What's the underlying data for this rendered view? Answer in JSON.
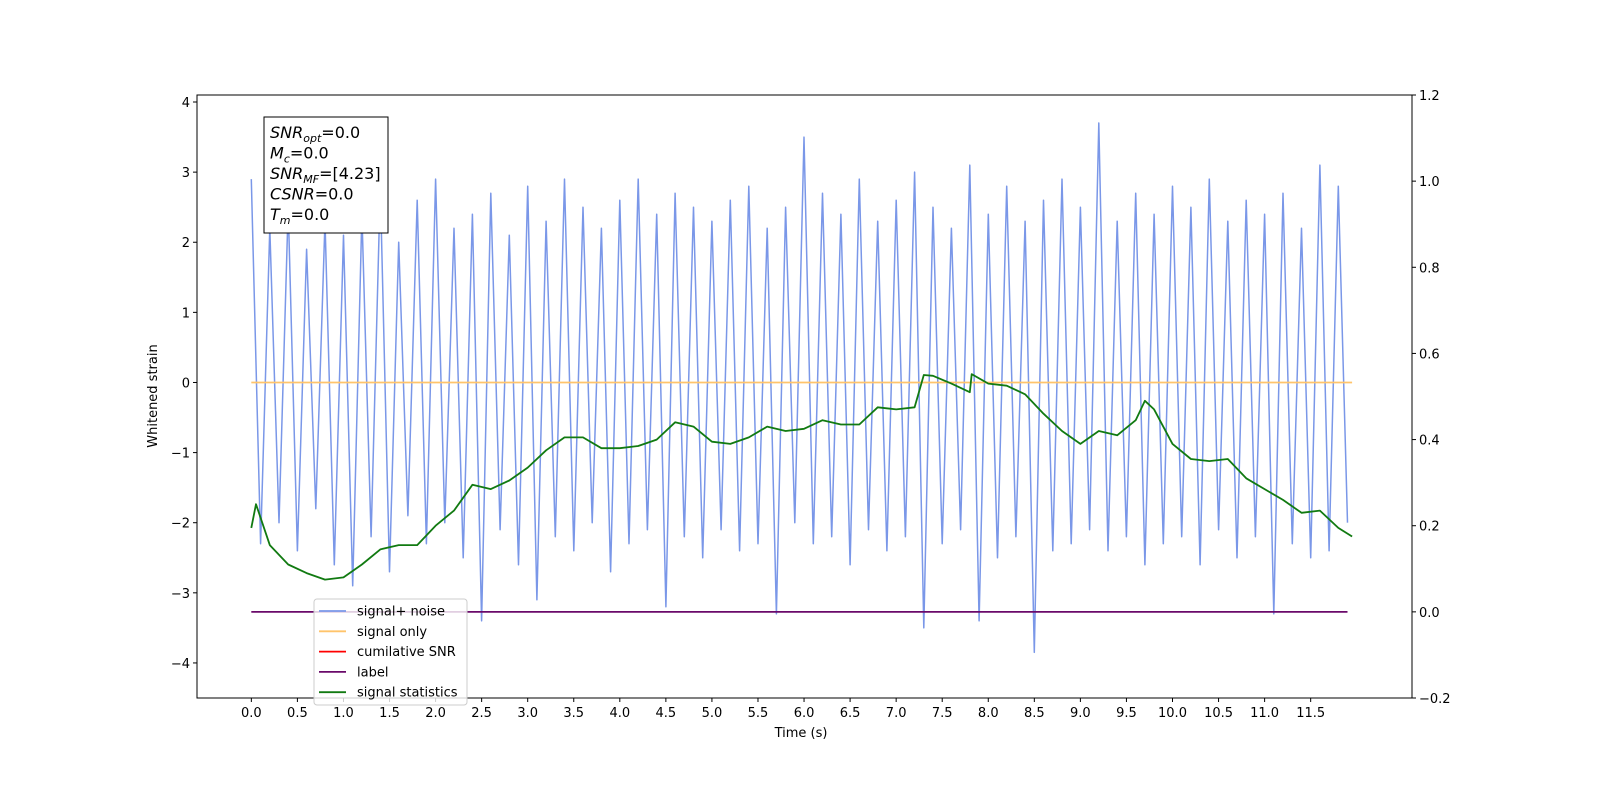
{
  "chart_data": {
    "type": "line",
    "xlabel": "Time (s)",
    "ylabel": "Whitened strain",
    "xlim": [
      -0.59,
      12.6
    ],
    "ylim": [
      -4.5,
      4.1
    ],
    "y2lim": [
      -0.2,
      1.2
    ],
    "xticks": [
      {
        "value": 0,
        "label": "0.0"
      },
      0.5,
      {
        "value": 1,
        "label": "1.0"
      },
      1.5,
      {
        "value": 2,
        "label": "2.0"
      },
      2.5,
      {
        "value": 3,
        "label": "3.0"
      },
      3.5,
      {
        "value": 4,
        "label": "4.0"
      },
      4.5,
      {
        "value": 5,
        "label": "5.0"
      },
      5.5,
      {
        "value": 6,
        "label": "6.0"
      },
      6.5,
      {
        "value": 7,
        "label": "7.0"
      },
      7.5,
      {
        "value": 8,
        "label": "8.0"
      },
      8.5,
      {
        "value": 9,
        "label": "9.0"
      },
      9.5,
      {
        "value": 10,
        "label": "10.0"
      },
      10.5,
      {
        "value": 11,
        "label": "11.0"
      },
      11.5
    ],
    "yticks": [
      {
        "value": -4,
        "label": "−4"
      },
      {
        "value": -3,
        "label": "−3"
      },
      {
        "value": -2,
        "label": "−2"
      },
      {
        "value": -1,
        "label": "−1"
      },
      0,
      1,
      2,
      3,
      4
    ],
    "y2ticks": [
      {
        "value": -0.2,
        "label": "−0.2"
      },
      {
        "value": 0,
        "label": "0.0"
      },
      0.2,
      0.4,
      0.6,
      0.8,
      {
        "value": 1,
        "label": "1.0"
      },
      1.2
    ],
    "legend": "lower left",
    "textbox": [
      {
        "symbol": "SNR",
        "sub": "opt",
        "value": "=0.0"
      },
      {
        "symbol": "M",
        "sub": "c",
        "value": "=0.0"
      },
      {
        "symbol": "SNR",
        "sub": "MF",
        "value": "=[4.23]"
      },
      {
        "symbol": "CSNR",
        "value": "=0.0"
      },
      {
        "symbol": "T",
        "sub": "m",
        "value": "=0.0"
      }
    ],
    "series": [
      {
        "name": "signal+ noise",
        "color": "#7a97e8",
        "axis": "y",
        "x": [
          0,
          0.1,
          0.2,
          0.3,
          0.4,
          0.5,
          0.6,
          0.7,
          0.8,
          0.9,
          1,
          1.1,
          1.2,
          1.3,
          1.4,
          1.5,
          1.6,
          1.7,
          1.8,
          1.9,
          2,
          2.1,
          2.2,
          2.3,
          2.4,
          2.5,
          2.6,
          2.7,
          2.8,
          2.9,
          3,
          3.1,
          3.2,
          3.3,
          3.4,
          3.5,
          3.6,
          3.7,
          3.8,
          3.9,
          4,
          4.1,
          4.2,
          4.3,
          4.4,
          4.5,
          4.6,
          4.7,
          4.8,
          4.9,
          5,
          5.1,
          5.2,
          5.3,
          5.4,
          5.5,
          5.6,
          5.7,
          5.8,
          5.9,
          6,
          6.1,
          6.2,
          6.3,
          6.4,
          6.5,
          6.6,
          6.7,
          6.8,
          6.9,
          7,
          7.1,
          7.2,
          7.3,
          7.4,
          7.5,
          7.6,
          7.7,
          7.8,
          7.9,
          8,
          8.1,
          8.2,
          8.3,
          8.4,
          8.5,
          8.6,
          8.7,
          8.8,
          8.9,
          9,
          9.1,
          9.2,
          9.3,
          9.4,
          9.5,
          9.6,
          9.7,
          9.8,
          9.9,
          10,
          10.1,
          10.2,
          10.3,
          10.4,
          10.5,
          10.6,
          10.7,
          10.8,
          10.9,
          11,
          11.1,
          11.2,
          11.3,
          11.4,
          11.5,
          11.6,
          11.7,
          11.8,
          11.9
        ],
        "values": [
          2.9,
          -2.3,
          2.2,
          -2.0,
          2.5,
          -2.4,
          1.9,
          -1.8,
          2.3,
          -2.6,
          2.1,
          -2.9,
          2.4,
          -2.2,
          2.8,
          -2.7,
          2.0,
          -1.9,
          2.6,
          -2.3,
          2.9,
          -2.0,
          2.2,
          -2.5,
          2.4,
          -3.4,
          2.7,
          -2.1,
          2.1,
          -2.6,
          2.8,
          -3.1,
          2.3,
          -2.2,
          2.9,
          -2.4,
          2.5,
          -2.0,
          2.2,
          -2.7,
          2.6,
          -2.3,
          2.9,
          -2.1,
          2.4,
          -3.2,
          2.7,
          -2.2,
          2.5,
          -2.5,
          2.3,
          -2.1,
          2.6,
          -2.4,
          2.8,
          -2.3,
          2.2,
          -3.3,
          2.5,
          -2.0,
          3.5,
          -2.3,
          2.7,
          -2.2,
          2.4,
          -2.6,
          2.9,
          -2.1,
          2.3,
          -2.4,
          2.6,
          -2.2,
          3.0,
          -3.5,
          2.5,
          -2.3,
          2.2,
          -2.1,
          3.1,
          -3.4,
          2.4,
          -2.5,
          2.8,
          -2.2,
          2.3,
          -3.85,
          2.6,
          -2.4,
          2.9,
          -2.3,
          2.5,
          -2.1,
          3.7,
          -2.4,
          2.3,
          -2.2,
          2.7,
          -2.6,
          2.4,
          -2.3,
          2.8,
          -2.2,
          2.5,
          -2.6,
          2.9,
          -2.1,
          2.3,
          -2.5,
          2.6,
          -2.2,
          2.4,
          -3.3,
          2.7,
          -2.3,
          2.2,
          -2.5,
          3.1,
          -2.4,
          2.8,
          -2.0
        ]
      },
      {
        "name": "signal only",
        "color": "#ffc46b",
        "axis": "y",
        "x": [
          0,
          11.95
        ],
        "values": [
          0,
          0
        ]
      },
      {
        "name": "cumilative SNR",
        "color": "#ff0000",
        "axis": "y",
        "x": [],
        "values": []
      },
      {
        "name": "label",
        "color": "#6a0a6a",
        "axis": "y2",
        "x": [
          0,
          11.9
        ],
        "values": [
          0,
          0
        ]
      },
      {
        "name": "signal statistics",
        "color": "#117a11",
        "axis": "y2",
        "x": [
          0,
          0.05,
          0.2,
          0.4,
          0.6,
          0.8,
          1,
          1.2,
          1.4,
          1.6,
          1.8,
          2,
          2.2,
          2.4,
          2.6,
          2.8,
          3,
          3.2,
          3.4,
          3.6,
          3.8,
          4,
          4.2,
          4.4,
          4.6,
          4.8,
          5,
          5.2,
          5.4,
          5.6,
          5.8,
          6,
          6.2,
          6.4,
          6.6,
          6.8,
          7,
          7.2,
          7.3,
          7.4,
          7.6,
          7.8,
          7.82,
          8,
          8.2,
          8.4,
          8.6,
          8.8,
          9,
          9.2,
          9.4,
          9.6,
          9.7,
          9.8,
          10,
          10.2,
          10.4,
          10.6,
          10.8,
          11,
          11.2,
          11.4,
          11.6,
          11.8,
          11.95
        ],
        "values": [
          0.195,
          0.25,
          0.155,
          0.11,
          0.09,
          0.075,
          0.08,
          0.11,
          0.145,
          0.155,
          0.155,
          0.2,
          0.235,
          0.295,
          0.285,
          0.305,
          0.335,
          0.375,
          0.405,
          0.405,
          0.38,
          0.38,
          0.385,
          0.4,
          0.44,
          0.43,
          0.395,
          0.39,
          0.405,
          0.43,
          0.42,
          0.425,
          0.445,
          0.435,
          0.435,
          0.475,
          0.47,
          0.475,
          0.55,
          0.548,
          0.53,
          0.51,
          0.552,
          0.53,
          0.525,
          0.505,
          0.46,
          0.42,
          0.39,
          0.42,
          0.41,
          0.445,
          0.49,
          0.47,
          0.39,
          0.355,
          0.35,
          0.355,
          0.31,
          0.285,
          0.26,
          0.23,
          0.235,
          0.195,
          0.175
        ]
      }
    ]
  }
}
